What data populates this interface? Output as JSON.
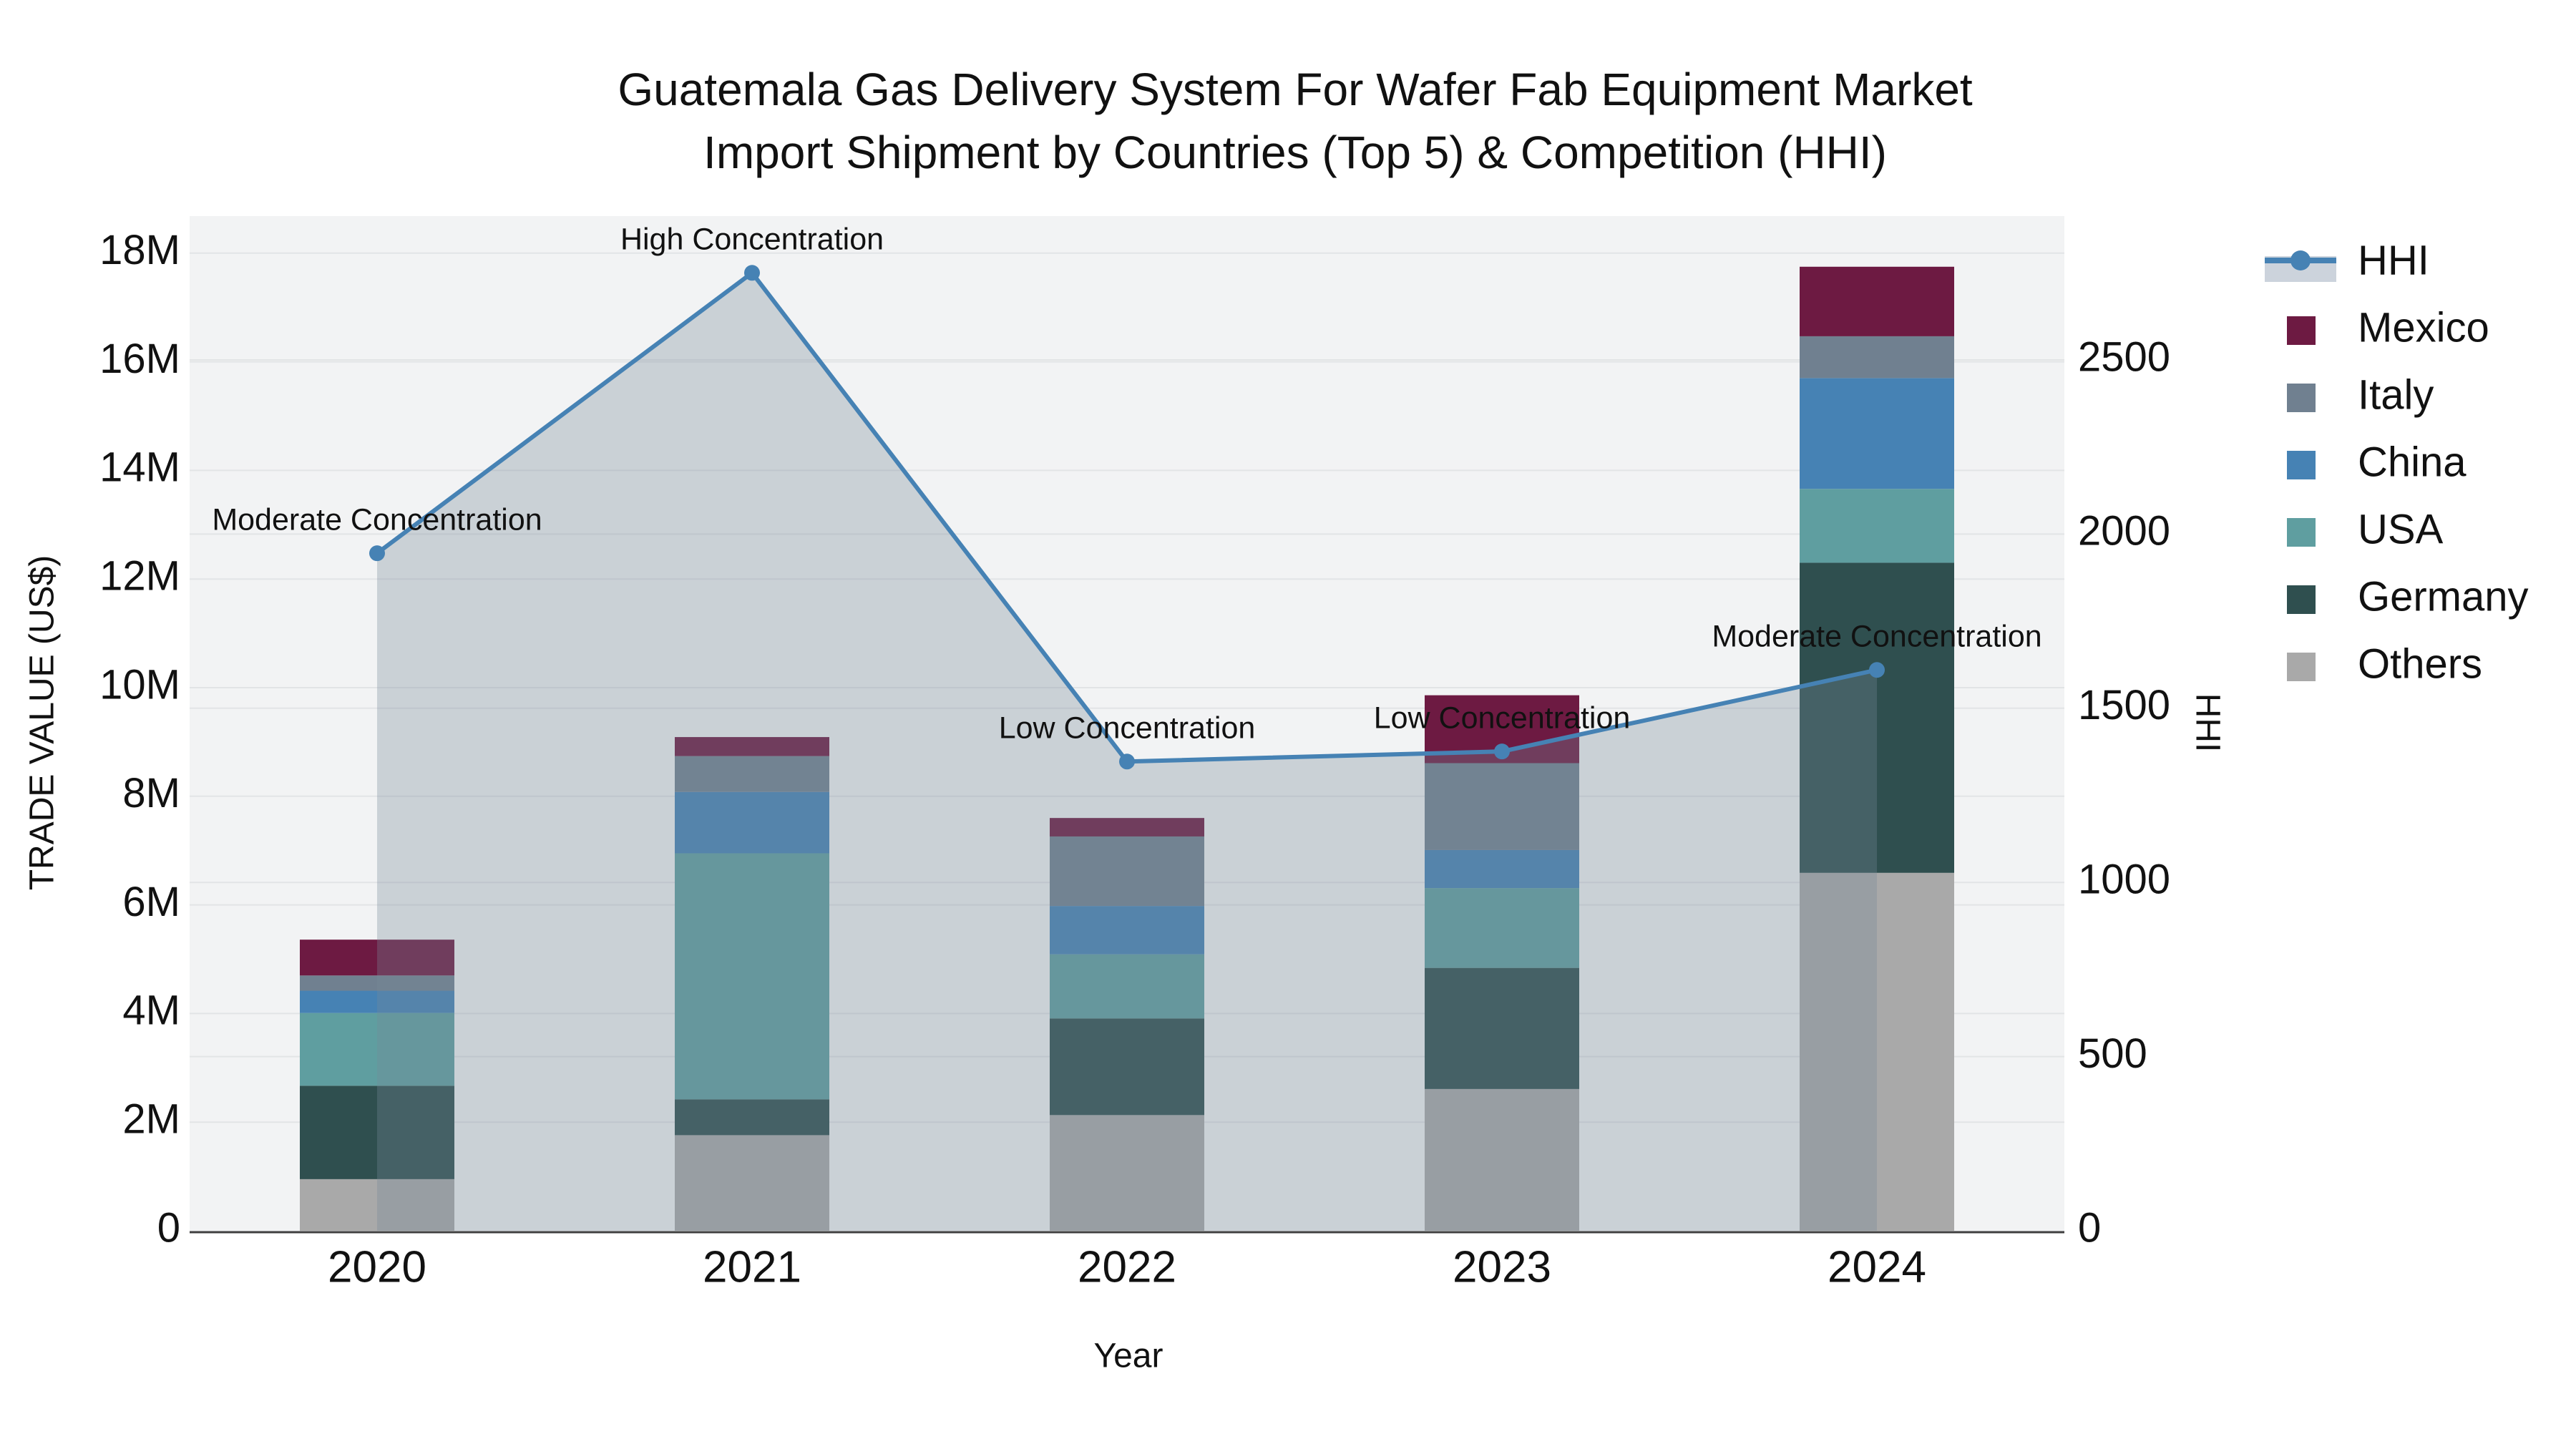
{
  "title": {
    "line1": "Guatemala Gas Delivery System For Wafer Fab Equipment Market",
    "line2": "Import Shipment by Countries (Top 5) & Competition (HHI)"
  },
  "colors": {
    "background": "#ffffff",
    "plot_bg": "#f2f3f4",
    "gridline": "#e2e4e6",
    "axis_line": "#3f3f3f",
    "text": "#111111",
    "hhi_line": "#4682B4",
    "hhi_fill": "rgba(119,136,153,0.32)",
    "hhi_legend_band": "#ccd3dc",
    "mexico": "#6D1A42",
    "italy": "#708090",
    "china": "#4682B4",
    "usa": "#5F9EA0",
    "germany": "#2F4F4F",
    "others": "#A9A9A9"
  },
  "chart_data": {
    "type": "bar-stacked+line",
    "title": "Guatemala Gas Delivery System For Wafer Fab Equipment Market Import Shipment by Countries (Top 5) & Competition (HHI)",
    "xlabel": "Year",
    "ylabel_left": "TRADE VALUE (US$)",
    "ylabel_right": "HHI",
    "categories": [
      "2020",
      "2021",
      "2022",
      "2023",
      "2024"
    ],
    "bar_unit": "million US$",
    "bar_totals_musd": [
      5.36,
      9.09,
      7.6,
      9.86,
      17.75
    ],
    "series": [
      {
        "name": "Others",
        "color_key": "others",
        "values_musd": [
          0.95,
          1.76,
          2.13,
          2.61,
          6.59
        ]
      },
      {
        "name": "Germany",
        "color_key": "germany",
        "values_musd": [
          1.72,
          0.66,
          1.78,
          2.23,
          5.71
        ]
      },
      {
        "name": "USA",
        "color_key": "usa",
        "values_musd": [
          1.34,
          4.53,
          1.18,
          1.47,
          1.36
        ]
      },
      {
        "name": "China",
        "color_key": "china",
        "values_musd": [
          0.41,
          1.13,
          0.89,
          0.7,
          2.04
        ]
      },
      {
        "name": "Italy",
        "color_key": "italy",
        "values_musd": [
          0.28,
          0.66,
          1.28,
          1.6,
          0.77
        ]
      },
      {
        "name": "Mexico",
        "color_key": "mexico",
        "values_musd": [
          0.66,
          0.35,
          0.34,
          1.25,
          1.28
        ]
      }
    ],
    "hhi": {
      "name": "HHI",
      "values": [
        1945,
        2750,
        1347,
        1376,
        1610
      ],
      "annotations": [
        "Moderate Concentration",
        "High Concentration",
        "Low Concentration",
        "Low Concentration",
        "Moderate Concentration"
      ]
    },
    "y_left": {
      "tick_labels": [
        "0",
        "2M",
        "4M",
        "6M",
        "8M",
        "10M",
        "12M",
        "14M",
        "16M",
        "18M"
      ],
      "tick_values_musd": [
        0,
        2,
        4,
        6,
        8,
        10,
        12,
        14,
        16,
        18
      ],
      "range_musd": [
        0,
        18.7
      ],
      "grid": true
    },
    "y_right": {
      "tick_labels": [
        "0",
        "500",
        "1000",
        "1500",
        "2000",
        "2500"
      ],
      "tick_values": [
        0,
        500,
        1000,
        1500,
        2000,
        2500
      ],
      "range": [
        0,
        2913
      ],
      "grid": true
    },
    "legend": {
      "position": "right",
      "entries": [
        {
          "label": "HHI",
          "swatch": "line-marker-band",
          "color_key": "hhi_line"
        },
        {
          "label": "Mexico",
          "swatch": "square",
          "color_key": "mexico"
        },
        {
          "label": "Italy",
          "swatch": "square",
          "color_key": "italy"
        },
        {
          "label": "China",
          "swatch": "square",
          "color_key": "china"
        },
        {
          "label": "USA",
          "swatch": "square",
          "color_key": "usa"
        },
        {
          "label": "Germany",
          "swatch": "square",
          "color_key": "germany"
        },
        {
          "label": "Others",
          "swatch": "square",
          "color_key": "others"
        }
      ]
    }
  }
}
